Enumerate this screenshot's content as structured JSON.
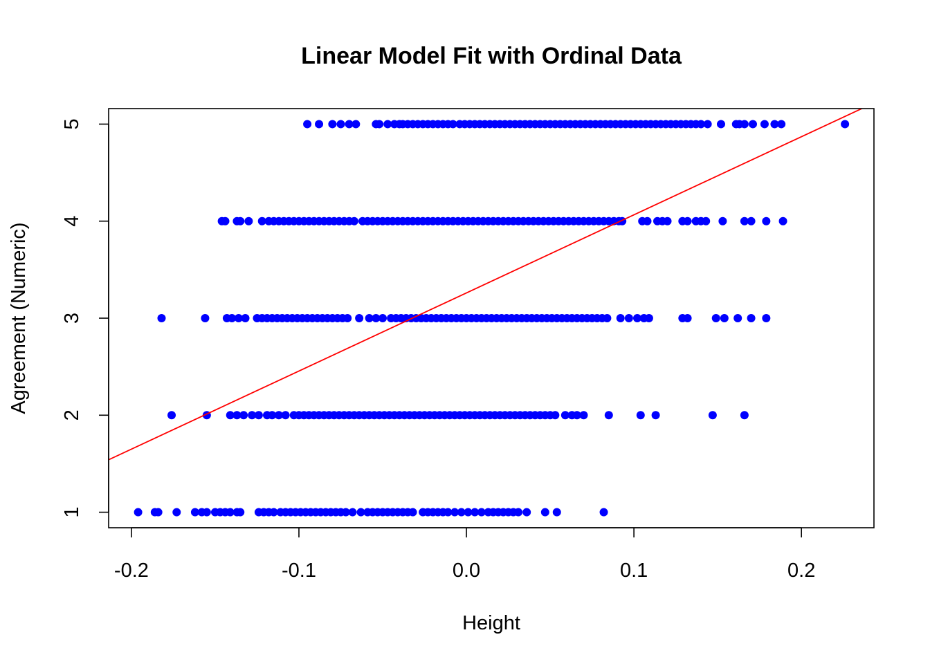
{
  "chart_data": {
    "type": "scatter",
    "title": "Linear Model Fit with Ordinal Data",
    "xlabel": "Height",
    "ylabel": "Agreement (Numeric)",
    "xlim": [
      -0.2136,
      0.2433
    ],
    "ylim": [
      0.84,
      5.16
    ],
    "x_ticks": [
      -0.2,
      -0.1,
      0.0,
      0.1,
      0.2
    ],
    "x_tick_labels": [
      "-0.2",
      "-0.1",
      "0.0",
      "0.1",
      "0.2"
    ],
    "y_ticks": [
      1,
      2,
      3,
      4,
      5
    ],
    "y_tick_labels": [
      "1",
      "2",
      "3",
      "4",
      "5"
    ],
    "grid": false,
    "legend": "none",
    "point_color": "#0000ff",
    "series": [
      {
        "y": 5,
        "x": [
          -0.095,
          -0.088,
          -0.08,
          -0.075,
          -0.07,
          -0.066,
          -0.054,
          -0.052,
          -0.047,
          -0.043,
          -0.04,
          -0.038,
          -0.035,
          -0.032,
          -0.029,
          -0.026,
          -0.023,
          -0.02,
          -0.017,
          -0.014,
          -0.011,
          -0.008,
          -0.004,
          -0.001,
          0.002,
          0.005,
          0.008,
          0.011,
          0.014,
          0.017,
          0.02,
          0.023,
          0.026,
          0.029,
          0.032,
          0.035,
          0.038,
          0.041,
          0.044,
          0.047,
          0.05,
          0.053,
          0.056,
          0.059,
          0.062,
          0.065,
          0.068,
          0.071,
          0.074,
          0.077,
          0.08,
          0.083,
          0.086,
          0.089,
          0.092,
          0.095,
          0.098,
          0.101,
          0.104,
          0.107,
          0.11,
          0.113,
          0.116,
          0.119,
          0.122,
          0.125,
          0.128,
          0.131,
          0.134,
          0.137,
          0.14,
          0.144,
          0.152,
          0.161,
          0.163,
          0.166,
          0.171,
          0.178,
          0.184,
          0.188,
          0.226
        ]
      },
      {
        "y": 4,
        "x": [
          -0.146,
          -0.144,
          -0.137,
          -0.135,
          -0.13,
          -0.122,
          -0.118,
          -0.115,
          -0.112,
          -0.109,
          -0.106,
          -0.103,
          -0.1,
          -0.097,
          -0.094,
          -0.091,
          -0.088,
          -0.085,
          -0.082,
          -0.079,
          -0.076,
          -0.073,
          -0.07,
          -0.067,
          -0.062,
          -0.059,
          -0.056,
          -0.053,
          -0.05,
          -0.047,
          -0.044,
          -0.041,
          -0.038,
          -0.035,
          -0.032,
          -0.029,
          -0.026,
          -0.023,
          -0.02,
          -0.017,
          -0.014,
          -0.011,
          -0.008,
          -0.005,
          -0.002,
          0.001,
          0.004,
          0.007,
          0.01,
          0.013,
          0.016,
          0.019,
          0.022,
          0.025,
          0.028,
          0.031,
          0.034,
          0.037,
          0.04,
          0.043,
          0.046,
          0.049,
          0.052,
          0.055,
          0.058,
          0.061,
          0.064,
          0.067,
          0.07,
          0.073,
          0.076,
          0.079,
          0.082,
          0.085,
          0.088,
          0.091,
          0.093,
          0.105,
          0.108,
          0.114,
          0.117,
          0.12,
          0.129,
          0.132,
          0.137,
          0.14,
          0.143,
          0.153,
          0.166,
          0.17,
          0.179,
          0.189
        ]
      },
      {
        "y": 3,
        "x": [
          -0.182,
          -0.156,
          -0.143,
          -0.14,
          -0.136,
          -0.132,
          -0.125,
          -0.122,
          -0.119,
          -0.116,
          -0.113,
          -0.11,
          -0.107,
          -0.104,
          -0.101,
          -0.098,
          -0.095,
          -0.092,
          -0.089,
          -0.086,
          -0.083,
          -0.08,
          -0.077,
          -0.074,
          -0.071,
          -0.064,
          -0.058,
          -0.054,
          -0.05,
          -0.045,
          -0.042,
          -0.039,
          -0.036,
          -0.033,
          -0.03,
          -0.027,
          -0.024,
          -0.021,
          -0.018,
          -0.015,
          -0.012,
          -0.009,
          -0.006,
          -0.003,
          0.0,
          0.003,
          0.006,
          0.009,
          0.012,
          0.015,
          0.018,
          0.021,
          0.024,
          0.027,
          0.03,
          0.033,
          0.036,
          0.039,
          0.042,
          0.045,
          0.048,
          0.051,
          0.054,
          0.057,
          0.06,
          0.063,
          0.066,
          0.069,
          0.072,
          0.075,
          0.078,
          0.081,
          0.084,
          0.092,
          0.097,
          0.102,
          0.106,
          0.109,
          0.129,
          0.132,
          0.149,
          0.154,
          0.162,
          0.17,
          0.179
        ]
      },
      {
        "y": 2,
        "x": [
          -0.176,
          -0.155,
          -0.141,
          -0.137,
          -0.133,
          -0.128,
          -0.124,
          -0.119,
          -0.116,
          -0.112,
          -0.108,
          -0.103,
          -0.1,
          -0.097,
          -0.094,
          -0.091,
          -0.088,
          -0.085,
          -0.082,
          -0.079,
          -0.076,
          -0.073,
          -0.07,
          -0.067,
          -0.064,
          -0.061,
          -0.058,
          -0.055,
          -0.052,
          -0.049,
          -0.046,
          -0.043,
          -0.04,
          -0.037,
          -0.034,
          -0.031,
          -0.028,
          -0.025,
          -0.022,
          -0.019,
          -0.016,
          -0.013,
          -0.01,
          -0.007,
          -0.004,
          -0.001,
          0.002,
          0.005,
          0.008,
          0.011,
          0.014,
          0.017,
          0.02,
          0.023,
          0.026,
          0.029,
          0.032,
          0.035,
          0.038,
          0.041,
          0.044,
          0.047,
          0.05,
          0.053,
          0.059,
          0.063,
          0.066,
          0.07,
          0.085,
          0.104,
          0.113,
          0.147,
          0.166
        ]
      },
      {
        "y": 1,
        "x": [
          -0.196,
          -0.186,
          -0.184,
          -0.173,
          -0.162,
          -0.158,
          -0.155,
          -0.15,
          -0.147,
          -0.144,
          -0.141,
          -0.137,
          -0.135,
          -0.124,
          -0.121,
          -0.118,
          -0.115,
          -0.111,
          -0.108,
          -0.105,
          -0.102,
          -0.099,
          -0.096,
          -0.093,
          -0.09,
          -0.087,
          -0.084,
          -0.081,
          -0.078,
          -0.075,
          -0.072,
          -0.068,
          -0.063,
          -0.059,
          -0.056,
          -0.053,
          -0.05,
          -0.047,
          -0.044,
          -0.041,
          -0.038,
          -0.035,
          -0.032,
          -0.026,
          -0.023,
          -0.02,
          -0.017,
          -0.014,
          -0.011,
          -0.007,
          -0.003,
          0.001,
          0.005,
          0.009,
          0.013,
          0.016,
          0.019,
          0.022,
          0.025,
          0.028,
          0.031,
          0.036,
          0.047,
          0.054,
          0.082
        ]
      }
    ],
    "fit_line": {
      "intercept": 3.26,
      "slope": 8.05,
      "color": "#ff0000"
    }
  }
}
